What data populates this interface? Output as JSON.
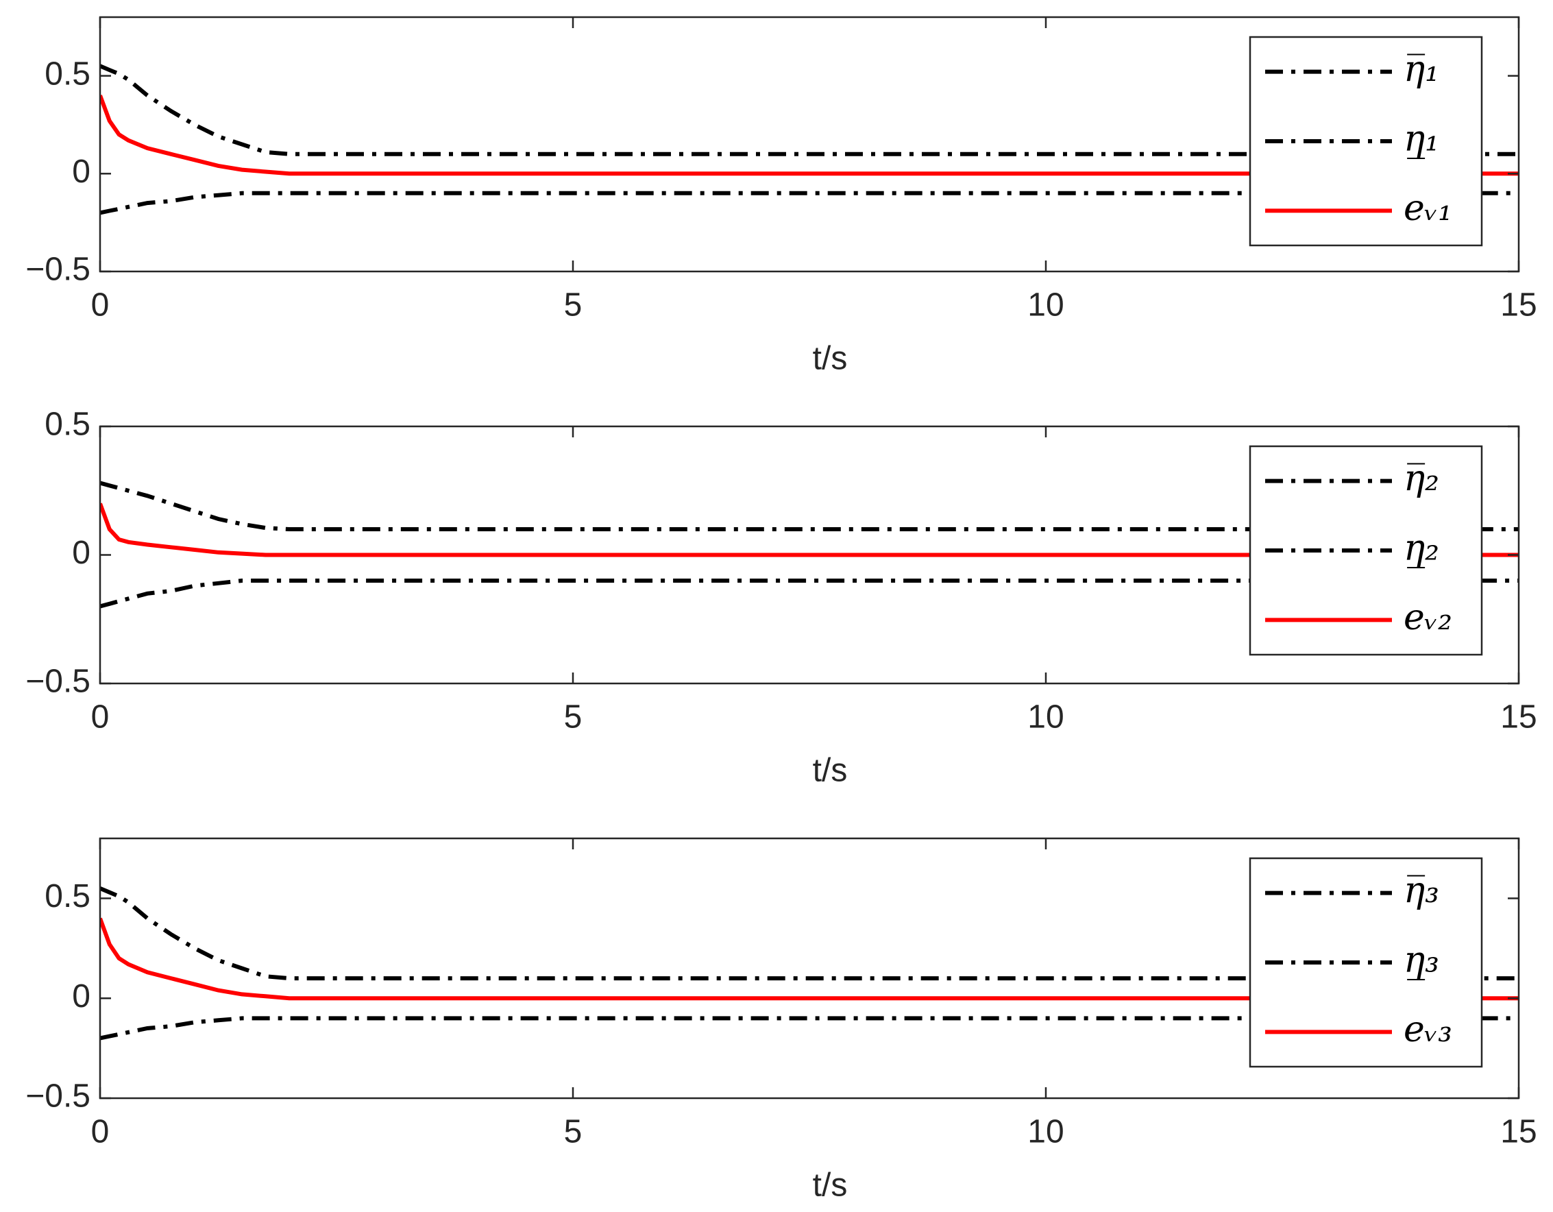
{
  "chart_data": [
    {
      "type": "line",
      "xlabel": "t/s",
      "xlim": [
        0,
        15
      ],
      "xticks": [
        0,
        5,
        10,
        15
      ],
      "ylim": [
        -0.5,
        0.8
      ],
      "yticks": [
        {
          "value": -0.5,
          "label": "−0.5"
        },
        0,
        0.5
      ],
      "legend": "upper right",
      "x": [
        0,
        0.1,
        0.2,
        0.3,
        0.5,
        0.75,
        1,
        1.25,
        1.5,
        1.75,
        2,
        15
      ],
      "series": [
        {
          "name": "η̅₁",
          "color": "#000000",
          "style": "dashdot",
          "values": [
            0.55,
            0.53,
            0.51,
            0.48,
            0.4,
            0.32,
            0.25,
            0.19,
            0.15,
            0.11,
            0.1,
            0.1
          ]
        },
        {
          "name": "η̲₁",
          "color": "#000000",
          "style": "dashdot",
          "values": [
            -0.2,
            -0.19,
            -0.18,
            -0.17,
            -0.15,
            -0.14,
            -0.12,
            -0.11,
            -0.1,
            -0.1,
            -0.1,
            -0.1
          ]
        },
        {
          "name": "eᵥ₁",
          "color": "#ff0000",
          "style": "solid",
          "values": [
            0.4,
            0.27,
            0.2,
            0.17,
            0.13,
            0.1,
            0.07,
            0.04,
            0.02,
            0.01,
            0,
            0
          ]
        }
      ]
    },
    {
      "type": "line",
      "xlabel": "t/s",
      "xlim": [
        0,
        15
      ],
      "xticks": [
        0,
        5,
        10,
        15
      ],
      "ylim": [
        -0.5,
        0.5
      ],
      "yticks": [
        {
          "value": -0.5,
          "label": "−0.5"
        },
        0,
        0.5
      ],
      "legend": "upper right",
      "x": [
        0,
        0.1,
        0.2,
        0.3,
        0.5,
        0.75,
        1,
        1.25,
        1.5,
        1.75,
        2,
        15
      ],
      "series": [
        {
          "name": "η̅₂",
          "color": "#000000",
          "style": "dashdot",
          "values": [
            0.28,
            0.27,
            0.26,
            0.25,
            0.23,
            0.2,
            0.17,
            0.14,
            0.12,
            0.105,
            0.1,
            0.1
          ]
        },
        {
          "name": "η̲₂",
          "color": "#000000",
          "style": "dashdot",
          "values": [
            -0.2,
            -0.19,
            -0.18,
            -0.17,
            -0.15,
            -0.14,
            -0.12,
            -0.11,
            -0.1,
            -0.1,
            -0.1,
            -0.1
          ]
        },
        {
          "name": "eᵥ₂",
          "color": "#ff0000",
          "style": "solid",
          "values": [
            0.2,
            0.1,
            0.06,
            0.05,
            0.04,
            0.03,
            0.02,
            0.01,
            0.005,
            0,
            0,
            0
          ]
        }
      ]
    },
    {
      "type": "line",
      "xlabel": "t/s",
      "xlim": [
        0,
        15
      ],
      "xticks": [
        0,
        5,
        10,
        15
      ],
      "ylim": [
        -0.5,
        0.8
      ],
      "yticks": [
        {
          "value": -0.5,
          "label": "−0.5"
        },
        0,
        0.5
      ],
      "legend": "upper right",
      "x": [
        0,
        0.1,
        0.2,
        0.3,
        0.5,
        0.75,
        1,
        1.25,
        1.5,
        1.75,
        2,
        15
      ],
      "series": [
        {
          "name": "η̅₃",
          "color": "#000000",
          "style": "dashdot",
          "values": [
            0.55,
            0.53,
            0.51,
            0.48,
            0.4,
            0.32,
            0.25,
            0.19,
            0.15,
            0.11,
            0.1,
            0.1
          ]
        },
        {
          "name": "η̲₃",
          "color": "#000000",
          "style": "dashdot",
          "values": [
            -0.2,
            -0.19,
            -0.18,
            -0.17,
            -0.15,
            -0.14,
            -0.12,
            -0.11,
            -0.1,
            -0.1,
            -0.1,
            -0.1
          ]
        },
        {
          "name": "eᵥ₃",
          "color": "#ff0000",
          "style": "solid",
          "values": [
            0.4,
            0.27,
            0.2,
            0.17,
            0.13,
            0.1,
            0.07,
            0.04,
            0.02,
            0.01,
            0,
            0
          ]
        }
      ]
    }
  ]
}
